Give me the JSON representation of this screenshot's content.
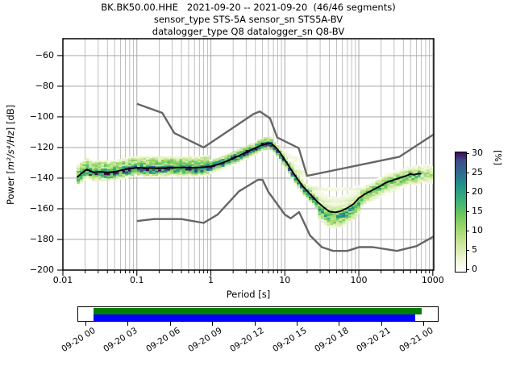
{
  "title": {
    "line1": "BK.BK50.00.HHE   2021-09-20 -- 2021-09-20  (46/46 segments)",
    "line2": "sensor_type STS-5A sensor_sn STS5A-BV",
    "line3": "datalogger_type Q8 datalogger_sn Q8-BV"
  },
  "axes": {
    "x_label": "Period [s]",
    "y_label_prefix": "Power [",
    "y_label_unit": "m²/s⁴/Hz",
    "y_label_suffix": "] [dB]",
    "x_ticks": [
      {
        "label": "0.01",
        "value": 0.01
      },
      {
        "label": "0.1",
        "value": 0.1
      },
      {
        "label": "1",
        "value": 1
      },
      {
        "label": "10",
        "value": 10
      },
      {
        "label": "100",
        "value": 100
      },
      {
        "label": "1000",
        "value": 1000
      }
    ],
    "y_ticks": [
      {
        "label": "−60",
        "value": -60
      },
      {
        "label": "−80",
        "value": -80
      },
      {
        "label": "−100",
        "value": -100
      },
      {
        "label": "−120",
        "value": -120
      },
      {
        "label": "−140",
        "value": -140
      },
      {
        "label": "−160",
        "value": -160
      },
      {
        "label": "−180",
        "value": -180
      },
      {
        "label": "−200",
        "value": -200
      }
    ],
    "grid_color": "#b0b0b0",
    "spine_color": "#000000"
  },
  "colorbar": {
    "label": "[%]",
    "ticks": [
      0,
      5,
      10,
      15,
      20,
      25,
      30
    ],
    "max_value": 30,
    "stops": [
      [
        0.0,
        "#ffffff"
      ],
      [
        0.1,
        "#eef6d8"
      ],
      [
        0.22,
        "#cfe8a2"
      ],
      [
        0.35,
        "#a2d96e"
      ],
      [
        0.48,
        "#6cc75c"
      ],
      [
        0.6,
        "#38b177"
      ],
      [
        0.72,
        "#22948b"
      ],
      [
        0.84,
        "#31688e"
      ],
      [
        0.93,
        "#3d4d8a"
      ],
      [
        1.0,
        "#400a54"
      ]
    ]
  },
  "timeline": {
    "labels": [
      "09-20 00",
      "09-20 03",
      "09-20 06",
      "09-20 09",
      "09-20 12",
      "09-20 15",
      "09-20 18",
      "09-20 21",
      "09-21 00"
    ],
    "green_color": "#008000",
    "blue_color": "#0000ff",
    "green_bar": {
      "start_frac": 0.024,
      "end_frac": 0.996
    },
    "blue_bar": {
      "start_frac": 0.024,
      "end_frac": 0.977
    }
  },
  "chart_data": {
    "type": "heatmap",
    "title": "BK.BK50.00.HHE 2021-09-20 -- 2021-09-20 (46/46 segments)",
    "xlabel": "Period [s]",
    "ylabel": "Power [m2/s4/Hz] [dB]",
    "x_scale": "log",
    "xlim": [
      0.01,
      1030
    ],
    "ylim": [
      -200,
      -49
    ],
    "colorbar_range_percent": [
      0,
      30
    ],
    "mean_curve": [
      [
        0.0155,
        -139.5
      ],
      [
        0.018,
        -136.8
      ],
      [
        0.021,
        -134.3
      ],
      [
        0.026,
        -136.3
      ],
      [
        0.032,
        -135.8
      ],
      [
        0.04,
        -136.3
      ],
      [
        0.05,
        -135.8
      ],
      [
        0.065,
        -134.6
      ],
      [
        0.08,
        -133.8
      ],
      [
        0.1,
        -133.2
      ],
      [
        0.14,
        -133.4
      ],
      [
        0.2,
        -133.6
      ],
      [
        0.28,
        -133.2
      ],
      [
        0.4,
        -133.0
      ],
      [
        0.55,
        -133.2
      ],
      [
        0.75,
        -133.0
      ],
      [
        1.0,
        -132.3
      ],
      [
        1.3,
        -130.8
      ],
      [
        1.7,
        -128.6
      ],
      [
        2.2,
        -126.2
      ],
      [
        3.0,
        -123.2
      ],
      [
        4.0,
        -120.3
      ],
      [
        5.0,
        -118.2
      ],
      [
        5.8,
        -117.2
      ],
      [
        6.6,
        -117.6
      ],
      [
        7.5,
        -119.8
      ],
      [
        8.5,
        -123.0
      ],
      [
        10,
        -128.0
      ],
      [
        12,
        -134.0
      ],
      [
        15,
        -141.0
      ],
      [
        18,
        -146.0
      ],
      [
        22,
        -150.5
      ],
      [
        27,
        -155.0
      ],
      [
        33,
        -158.8
      ],
      [
        40,
        -161.8
      ],
      [
        48,
        -162.3
      ],
      [
        57,
        -161.5
      ],
      [
        70,
        -159.5
      ],
      [
        85,
        -156.8
      ],
      [
        100,
        -153.0
      ],
      [
        120,
        -150.5
      ],
      [
        150,
        -148.0
      ],
      [
        190,
        -145.5
      ],
      [
        230,
        -143.0
      ],
      [
        280,
        -141.5
      ],
      [
        350,
        -140.0
      ],
      [
        420,
        -138.8
      ],
      [
        500,
        -137.3
      ],
      [
        560,
        -137.8
      ],
      [
        640,
        -137.0
      ],
      [
        700,
        -137.1
      ]
    ],
    "high_noise_model": [
      [
        0.1,
        -91.5
      ],
      [
        0.22,
        -97.4
      ],
      [
        0.32,
        -110.5
      ],
      [
        0.8,
        -120.0
      ],
      [
        3.8,
        -98.1
      ],
      [
        4.6,
        -96.5
      ],
      [
        6.3,
        -101.0
      ],
      [
        7.9,
        -113.5
      ],
      [
        15.4,
        -120.4
      ],
      [
        20,
        -138.5
      ],
      [
        354.8,
        -126.0
      ],
      [
        1030,
        -111.4
      ]
    ],
    "low_noise_model": [
      [
        0.1,
        -168.0
      ],
      [
        0.17,
        -166.7
      ],
      [
        0.4,
        -166.7
      ],
      [
        0.8,
        -169.2
      ],
      [
        1.24,
        -163.7
      ],
      [
        2.4,
        -148.6
      ],
      [
        4.3,
        -141.1
      ],
      [
        5.0,
        -141.1
      ],
      [
        6.0,
        -149.0
      ],
      [
        10,
        -163.8
      ],
      [
        12,
        -166.2
      ],
      [
        15.6,
        -162.1
      ],
      [
        21.9,
        -177.4
      ],
      [
        31.6,
        -185.0
      ],
      [
        45,
        -187.5
      ],
      [
        70,
        -187.5
      ],
      [
        101,
        -185.0
      ],
      [
        154,
        -185.0
      ],
      [
        328,
        -187.5
      ],
      [
        600,
        -184.4
      ],
      [
        1030,
        -178.0
      ]
    ],
    "model_line_color": "#666666",
    "mean_line_color": "#000000",
    "histogram_model": {
      "note": "synthetic approximation of the PPSD probability cloud around the mean curve",
      "period_range": [
        0.0155,
        1000
      ],
      "regions": [
        {
          "p_max": 0.95,
          "core": {
            "center": -0.9,
            "sigma": 2.2,
            "amp": 0.92
          },
          "lobe": {
            "center": 4.6,
            "sigma": 1.7,
            "amp": 0.34
          },
          "offsets": [
            -5.5,
            7.8
          ]
        },
        {
          "p_max": 7,
          "core": {
            "center": -0.5,
            "sigma": 1.7,
            "amp": 1.0
          },
          "lobe": {
            "center": 2.8,
            "sigma": 1.4,
            "amp": 0.18
          },
          "offsets": [
            -4.5,
            4.8
          ]
        },
        {
          "p_max": 28,
          "core": {
            "center": -1.0,
            "sigma": 1.9,
            "amp": 0.8
          },
          "fan": true,
          "offsets": [
            -5,
            30
          ]
        },
        {
          "p_max": 110,
          "core": {
            "center": -3.5,
            "sigma": 3.4,
            "amp": 0.62
          },
          "fan": true,
          "offsets": [
            -10,
            30
          ]
        },
        {
          "p_max": 700,
          "core": {
            "center": -0.8,
            "sigma": 3.0,
            "amp": 0.55
          },
          "offsets": [
            -8,
            8.5
          ]
        },
        {
          "p_max": 1000,
          "core": {
            "center": -0.5,
            "sigma": 3.2,
            "amp": 0.32
          },
          "offsets": [
            -6,
            6.5
          ]
        }
      ],
      "fan_cap": {
        "base_db": -116,
        "slope_db_per_decade": -16,
        "ref_log10p": 0.75
      }
    }
  }
}
